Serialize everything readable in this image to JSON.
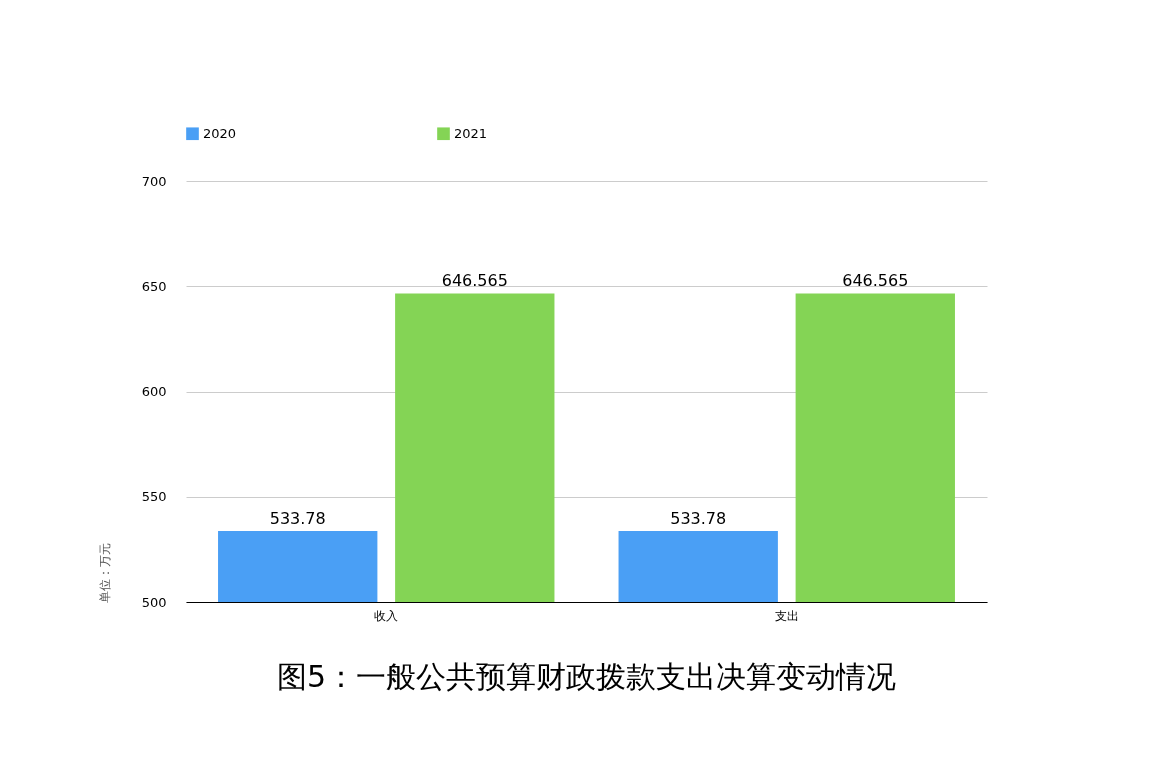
{
  "chart_data": {
    "type": "bar",
    "title": "图5：一般公共预算财政拨款支出决算变动情况",
    "ylabel": "单位：万元",
    "categories": [
      "收入",
      "支出"
    ],
    "series": [
      {
        "name": "2020",
        "color": "#4a9ff5",
        "values": [
          533.78,
          533.78
        ]
      },
      {
        "name": "2021",
        "color": "#84d455",
        "values": [
          646.565,
          646.565
        ]
      }
    ],
    "ylim": [
      500,
      700
    ],
    "yticks": [
      500,
      550,
      600,
      650,
      700
    ],
    "grid": "y",
    "legend": "top",
    "data_labels": true
  }
}
